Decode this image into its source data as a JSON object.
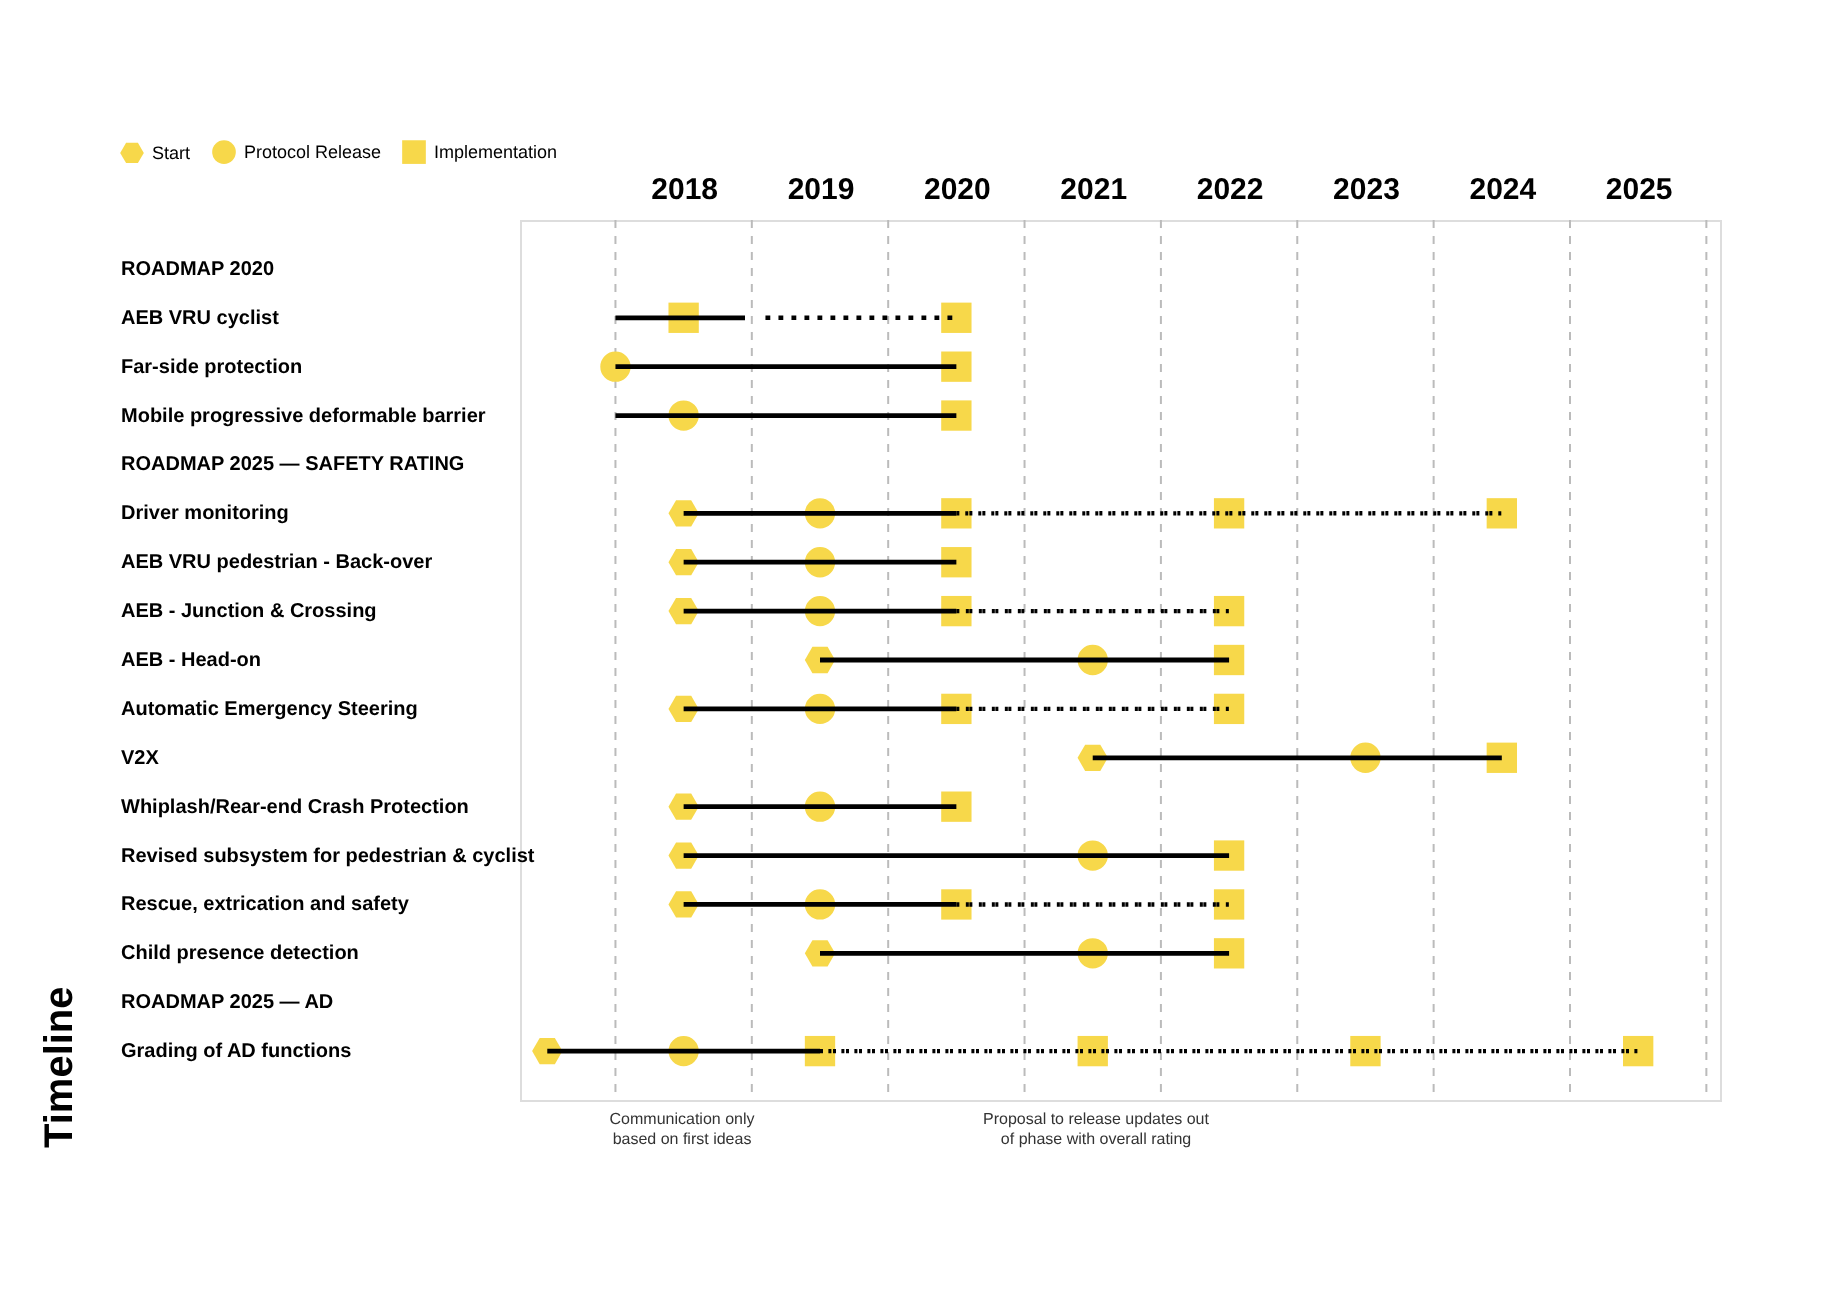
{
  "chart_data": {
    "type": "bar",
    "orientation": "horizontal",
    "title": "Timeline",
    "legend": "top left",
    "grid": false,
    "categories": [
      "ROADMAP 2020",
      "AEB VRU cyclist",
      "Far-side protection",
      "Mobile progressive deformable barrier",
      "ROADMAP 2025 — SAFETY RATING",
      "Driver monitoring",
      "AEB VRU pedestrian - Back-over",
      "AEB - Junction & Crossing",
      "AEB - Head-on",
      "Automatic Emergency Steering",
      "V2X",
      "Whiplash/Rear-end Crash Protection",
      "Revised subsystem for pedestrian & cyclist",
      "Rescue, extrication and safety",
      "Child presence detection",
      "ROADMAP 2025 — AD",
      "Grading of AD functions"
    ],
    "xlim": [
      2016.8,
      2025.6
    ],
    "xticks": [
      2018,
      2019,
      2020,
      2021,
      2022,
      2023,
      2024,
      2025
    ],
    "ref_lines": [
      {
        "axis": "x",
        "value": 2017.5,
        "color": "#bbbbbb",
        "line_style": "dashed"
      },
      {
        "axis": "x",
        "value": 2018.5,
        "color": "#bbbbbb",
        "line_style": "dashed"
      },
      {
        "axis": "x",
        "value": 2019.5,
        "color": "#bbbbbb",
        "line_style": "dashed"
      },
      {
        "axis": "x",
        "value": 2020.5,
        "color": "#bbbbbb",
        "line_style": "dashed"
      },
      {
        "axis": "x",
        "value": 2021.5,
        "color": "#bbbbbb",
        "line_style": "dashed"
      },
      {
        "axis": "x",
        "value": 2022.5,
        "color": "#bbbbbb",
        "line_style": "dashed"
      },
      {
        "axis": "x",
        "value": 2023.5,
        "color": "#bbbbbb",
        "line_style": "dashed"
      },
      {
        "axis": "x",
        "value": 2024.5,
        "color": "#bbbbbb",
        "line_style": "dashed"
      },
      {
        "axis": "x",
        "value": 2025.5,
        "color": "#bbbbbb",
        "line_style": "dashed"
      }
    ],
    "annotations": [
      "Communication only\nbased on first ideas",
      "Proposal to release updates out\nof phase with overall rating"
    ],
    "series": [
      {
        "color": "#000000",
        "line_style": "solid",
        "base": [
          null,
          2017.5,
          2017.5,
          2017.5,
          null,
          2018,
          2018,
          2018,
          2019,
          2018,
          2021,
          2018,
          2018,
          2018,
          2019,
          null,
          2017
        ],
        "values": [
          null,
          0.95,
          2.5,
          2.5,
          null,
          2,
          2,
          2,
          3,
          2,
          3,
          2,
          4,
          2,
          3,
          null,
          2
        ]
      },
      {
        "color": "#000000",
        "line_style": "dotted",
        "base": [
          null,
          2018.6,
          null,
          null,
          null,
          2020,
          null,
          2020,
          null,
          2020,
          null,
          null,
          null,
          2020,
          null,
          null,
          2019
        ],
        "values": [
          null,
          1.4,
          null,
          null,
          null,
          4,
          null,
          2,
          null,
          2,
          null,
          null,
          null,
          2,
          null,
          null,
          6
        ]
      },
      {
        "name": "Start",
        "type": "scatter",
        "color": "#f7d84a",
        "values": [
          null,
          null,
          null,
          null,
          null,
          2018,
          2018,
          2018,
          2019,
          2018,
          2021,
          2018,
          2018,
          2018,
          2019,
          null,
          2017
        ]
      },
      {
        "name": "Protocol Release",
        "type": "scatter",
        "marker": "circle",
        "color": "#f7d84a",
        "values": [
          null,
          null,
          2017.5,
          2018,
          null,
          2019,
          2019,
          2019,
          2021,
          2019,
          2023,
          2019,
          2021,
          2019,
          2021,
          null,
          2018
        ]
      },
      {
        "name": "Implementation",
        "type": "scatter",
        "marker": "square",
        "color": "#f7d84a",
        "values": [
          null,
          2018,
          2020,
          2020,
          null,
          2020,
          2020,
          2020,
          2022,
          2020,
          2024,
          2020,
          2022,
          2020,
          2022,
          null,
          2019
        ]
      },
      {
        "type": "scatter",
        "marker": "square",
        "color": "#f7d84a",
        "values": [
          null,
          2020,
          null,
          null,
          null,
          2022,
          null,
          2022,
          null,
          2022,
          null,
          null,
          null,
          2022,
          null,
          null,
          2021
        ]
      },
      {
        "type": "scatter",
        "marker": "square",
        "color": "#f7d84a",
        "values": [
          null,
          null,
          null,
          null,
          null,
          2024,
          null,
          null,
          null,
          null,
          null,
          null,
          null,
          null,
          null,
          null,
          2023
        ]
      },
      {
        "type": "scatter",
        "marker": "square",
        "color": "#f7d84a",
        "values": [
          null,
          null,
          null,
          null,
          null,
          null,
          null,
          null,
          null,
          null,
          null,
          null,
          null,
          null,
          null,
          null,
          2025
        ]
      }
    ]
  }
}
